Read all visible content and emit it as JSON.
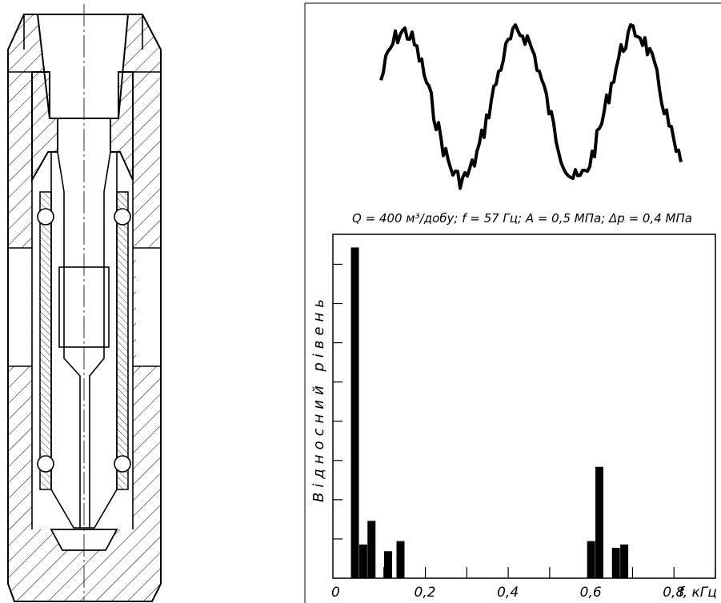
{
  "drawing": {
    "condition_caption": "Q = 400 м³/добу; f = 57 Гц; A = 0,5 МПа; Δp = 0,4 МПа"
  },
  "chart_data": {
    "type": "bar",
    "title": "",
    "xlabel": "f, кГц",
    "ylabel": "Відносний рівень",
    "xlim": [
      0,
      0.9
    ],
    "ylim": [
      0,
      1
    ],
    "x_tick_labels": [
      "0",
      "0,2",
      "0,4",
      "0,6",
      "0,8"
    ],
    "x_ticks": [
      0,
      0.2,
      0.4,
      0.6,
      0.8
    ],
    "bars": [
      {
        "x": 0.03,
        "value": 0.98
      },
      {
        "x": 0.05,
        "value": 0.1
      },
      {
        "x": 0.07,
        "value": 0.17
      },
      {
        "x": 0.11,
        "value": 0.08
      },
      {
        "x": 0.14,
        "value": 0.11
      },
      {
        "x": 0.6,
        "value": 0.11
      },
      {
        "x": 0.62,
        "value": 0.33
      },
      {
        "x": 0.66,
        "value": 0.09
      },
      {
        "x": 0.68,
        "value": 0.1
      }
    ],
    "grid": false,
    "legend": "none"
  }
}
